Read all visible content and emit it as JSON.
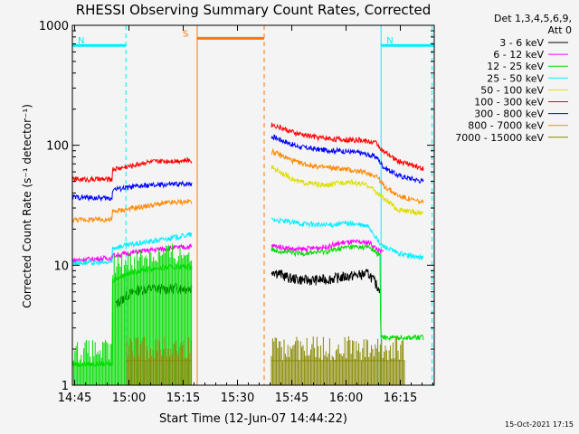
{
  "chart_data": {
    "type": "line",
    "title": "RHESSI Observing Summary Count Rates, Corrected",
    "xlabel": "Start Time (12-Jun-07 14:44:22)",
    "ylabel": "Corrected Count Rate (s⁻¹ detector⁻¹)",
    "yscale": "log",
    "ylim": [
      1,
      1000
    ],
    "xlim_minutes": [
      0,
      100
    ],
    "x_ticks": [
      "14:45",
      "15:00",
      "15:15",
      "15:30",
      "15:45",
      "16:00",
      "16:15"
    ],
    "y_ticks": [
      "1",
      "10",
      "100",
      "1000"
    ],
    "legend_header": [
      "Det 1,3,4,5,6,9,",
      "Att 0"
    ],
    "series": [
      {
        "name": "3 - 6 keV",
        "color": "#000000",
        "segments": [
          {
            "t0": 12,
            "t1": 33,
            "pts": [
              [
                12.5,
                4.8
              ],
              [
                15,
                5.6
              ],
              [
                18,
                6.2
              ],
              [
                22,
                6.4
              ],
              [
                26,
                6.3
              ],
              [
                29,
                6.5
              ],
              [
                32.5,
                6.4
              ]
            ]
          },
          {
            "t0": 55,
            "t1": 85,
            "pts": [
              [
                55.5,
                9.0
              ],
              [
                60,
                7.8
              ],
              [
                65,
                7.5
              ],
              [
                70,
                7.6
              ],
              [
                75,
                8.0
              ],
              [
                79,
                8.3
              ],
              [
                82,
                8.5
              ],
              [
                84.5,
                6.5
              ]
            ]
          }
        ]
      },
      {
        "name": "6 - 12 keV",
        "color": "#ff00ff",
        "segments": [
          {
            "t0": 0,
            "t1": 33,
            "pts": [
              [
                0,
                11
              ],
              [
                11,
                11.5
              ],
              [
                11.1,
                12
              ],
              [
                20,
                13.2
              ],
              [
                26,
                13.8
              ],
              [
                32.5,
                14.3
              ]
            ]
          },
          {
            "t0": 55,
            "t1": 86,
            "pts": [
              [
                55.5,
                14.5
              ],
              [
                62,
                13.5
              ],
              [
                70,
                14.2
              ],
              [
                75,
                15.5
              ],
              [
                82,
                15.5
              ],
              [
                85,
                13
              ]
            ]
          }
        ]
      },
      {
        "name": "12 - 25 keV",
        "color": "#00dd00",
        "segments": [
          {
            "t0": 0,
            "t1": 33,
            "pts": [
              [
                0,
                1.5
              ],
              [
                11,
                1.5
              ],
              [
                11.1,
                7.5
              ],
              [
                15,
                8.5
              ],
              [
                20,
                9.2
              ],
              [
                26,
                9.6
              ],
              [
                32.5,
                9.8
              ]
            ]
          },
          {
            "t0": 55,
            "t1": 97,
            "pts": [
              [
                55.5,
                13.5
              ],
              [
                62,
                12.5
              ],
              [
                70,
                13.0
              ],
              [
                76,
                14.2
              ],
              [
                82,
                14.2
              ],
              [
                85,
                12
              ],
              [
                85.2,
                2.5
              ],
              [
                97,
                2.5
              ]
            ]
          }
        ]
      },
      {
        "name": "25 - 50 keV",
        "color": "#00eeff",
        "segments": [
          {
            "t0": 0,
            "t1": 33,
            "pts": [
              [
                0,
                10.5
              ],
              [
                11,
                10.5
              ],
              [
                11.1,
                14
              ],
              [
                20,
                15.5
              ],
              [
                28,
                17
              ],
              [
                32.5,
                18
              ]
            ]
          },
          {
            "t0": 55,
            "t1": 97,
            "pts": [
              [
                55.5,
                24
              ],
              [
                62,
                22.5
              ],
              [
                70,
                21.5
              ],
              [
                76,
                22.5
              ],
              [
                82,
                21
              ],
              [
                85,
                15
              ],
              [
                90,
                12.5
              ],
              [
                97,
                11.5
              ]
            ]
          }
        ]
      },
      {
        "name": "50 - 100 keV",
        "color": "#dddd00",
        "segments": [
          {
            "t0": 55,
            "t1": 97,
            "pts": [
              [
                55.5,
                65
              ],
              [
                62,
                50
              ],
              [
                70,
                46
              ],
              [
                76,
                50
              ],
              [
                82,
                46
              ],
              [
                86,
                36
              ],
              [
                90,
                29
              ],
              [
                97,
                27
              ]
            ]
          }
        ]
      },
      {
        "name": "100 - 300 keV",
        "color": "#ff0000",
        "segments": [
          {
            "t0": 0,
            "t1": 33,
            "pts": [
              [
                0,
                52
              ],
              [
                11,
                52
              ],
              [
                11.1,
                63
              ],
              [
                16,
                67
              ],
              [
                20,
                72
              ],
              [
                26,
                74
              ],
              [
                32.5,
                75
              ]
            ]
          },
          {
            "t0": 55,
            "t1": 97,
            "pts": [
              [
                55.5,
                148
              ],
              [
                62,
                125
              ],
              [
                68,
                116
              ],
              [
                74,
                112
              ],
              [
                80,
                110
              ],
              [
                84,
                105
              ],
              [
                86,
                88
              ],
              [
                90,
                74
              ],
              [
                97,
                64
              ]
            ]
          }
        ]
      },
      {
        "name": "300 - 800 keV",
        "color": "#0000ff",
        "segments": [
          {
            "t0": 0,
            "t1": 33,
            "pts": [
              [
                0,
                37
              ],
              [
                11,
                36
              ],
              [
                11.1,
                43
              ],
              [
                20,
                46
              ],
              [
                26,
                47
              ],
              [
                32.5,
                48
              ]
            ]
          },
          {
            "t0": 55,
            "t1": 97,
            "pts": [
              [
                55.5,
                118
              ],
              [
                62,
                98
              ],
              [
                68,
                92
              ],
              [
                74,
                90
              ],
              [
                80,
                86
              ],
              [
                84,
                80
              ],
              [
                86,
                66
              ],
              [
                90,
                56
              ],
              [
                97,
                50
              ]
            ]
          }
        ]
      },
      {
        "name": "800 - 7000 keV",
        "color": "#ff8800",
        "segments": [
          {
            "t0": 0,
            "t1": 33,
            "pts": [
              [
                0,
                24
              ],
              [
                11,
                24
              ],
              [
                11.1,
                28
              ],
              [
                20,
                31
              ],
              [
                26,
                33
              ],
              [
                32.5,
                34
              ]
            ]
          },
          {
            "t0": 55,
            "t1": 97,
            "pts": [
              [
                55.5,
                88
              ],
              [
                62,
                72
              ],
              [
                68,
                66
              ],
              [
                74,
                64
              ],
              [
                80,
                60
              ],
              [
                84,
                56
              ],
              [
                86,
                46
              ],
              [
                90,
                38
              ],
              [
                97,
                33
              ]
            ]
          }
        ]
      },
      {
        "name": "7000 - 15000 keV",
        "color": "#888800",
        "segments": [
          {
            "t0": 15,
            "t1": 33,
            "pts": [
              [
                15,
                1.6
              ],
              [
                33,
                1.6
              ]
            ]
          },
          {
            "t0": 55,
            "t1": 92,
            "pts": [
              [
                55.5,
                1.6
              ],
              [
                92,
                1.6
              ]
            ]
          }
        ]
      }
    ],
    "markers": [
      {
        "label": "N",
        "color": "#00eeff",
        "level": 680,
        "bar": [
          0,
          14.8
        ],
        "lines": [
          [
            0,
            "solid"
          ],
          [
            14.8,
            "dash"
          ]
        ]
      },
      {
        "label": "N",
        "color": "#00eeff",
        "level": 680,
        "bar": [
          85.3,
          100
        ],
        "lines": [
          [
            85.3,
            "solid"
          ],
          [
            99.4,
            "dash"
          ]
        ]
      },
      {
        "label": "S",
        "color": "#ff7700",
        "level": 780,
        "bar": [
          34.5,
          53
        ],
        "lines": [
          [
            34.5,
            "solid"
          ],
          [
            53.0,
            "dash"
          ]
        ]
      }
    ],
    "footer_stamp": "15-Oct-2021 17:15"
  }
}
